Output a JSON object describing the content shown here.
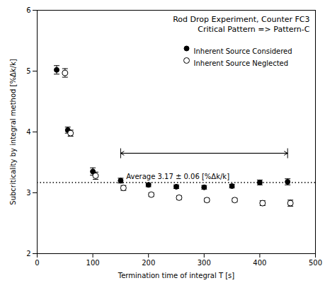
{
  "chart_data": {
    "type": "scatter",
    "title": "Rod Drop Experiment, Counter FC3",
    "subtitle": "Critical Pattern => Pattern-C",
    "x_label": "Termination time of integral T [s]",
    "y_label": "Subcriticality by integral method [%Δk/k]",
    "xlim": [
      0,
      500
    ],
    "ylim": [
      2,
      6
    ],
    "xticks": [
      0,
      100,
      200,
      300,
      400,
      500
    ],
    "yticks": [
      2,
      3,
      4,
      5,
      6
    ],
    "grid": false,
    "legend": "upper right",
    "series": [
      {
        "name": "Inherent Source Considered",
        "color": "#000000",
        "marker": "circle",
        "x": [
          35,
          55,
          100,
          150,
          200,
          250,
          300,
          350,
          400,
          450
        ],
        "values": [
          5.02,
          4.03,
          3.35,
          3.2,
          3.13,
          3.1,
          3.09,
          3.11,
          3.17,
          3.18
        ],
        "errors": [
          0.07,
          0.05,
          0.06,
          0.04,
          0.03,
          0.03,
          0.03,
          0.03,
          0.04,
          0.05
        ]
      },
      {
        "name": "Inherent Source Neglected",
        "color": "#000000",
        "marker": "open_circle",
        "x": [
          50,
          60,
          105,
          155,
          205,
          255,
          305,
          355,
          405,
          455
        ],
        "values": [
          4.97,
          3.98,
          3.28,
          3.08,
          2.97,
          2.92,
          2.88,
          2.88,
          2.83,
          2.83
        ],
        "errors": [
          0.07,
          0.05,
          0.06,
          0.04,
          0.03,
          0.03,
          0.03,
          0.03,
          0.04,
          0.05
        ]
      }
    ],
    "annotations": [
      {
        "type": "hline",
        "y": 3.17,
        "line_style": "dotted",
        "text": "Average 3.17 ± 0.06 [%Δk/k]"
      },
      {
        "type": "arrow",
        "x": [
          150,
          450
        ],
        "y": 3.65
      }
    ]
  }
}
